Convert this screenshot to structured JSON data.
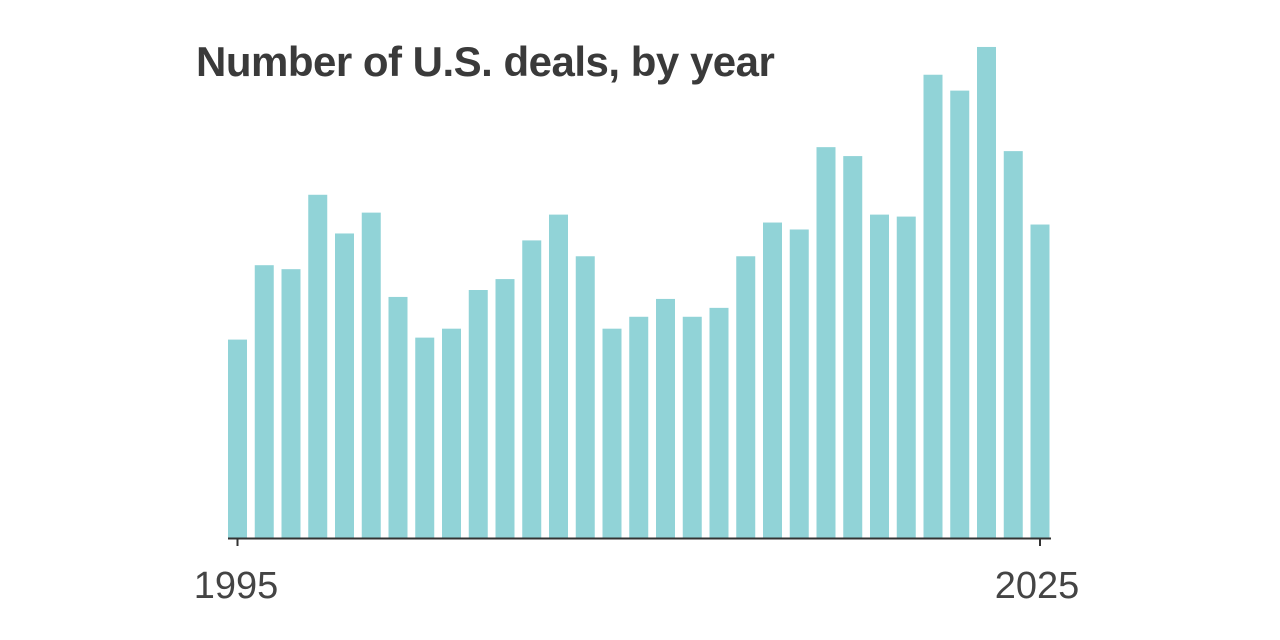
{
  "chart_data": {
    "type": "bar",
    "title": "Number of U.S. deals, by year",
    "xlabel": "",
    "ylabel": "",
    "categories": [
      "1995",
      "1996",
      "1997",
      "1998",
      "1999",
      "2000",
      "2001",
      "2002",
      "2003",
      "2004",
      "2005",
      "2006",
      "2007",
      "2008",
      "2009",
      "2010",
      "2011",
      "2012",
      "2013",
      "2014",
      "2015",
      "2016",
      "2017",
      "2018",
      "2019",
      "2020",
      "2021",
      "2022",
      "2023",
      "2024",
      "2025"
    ],
    "values": [
      200,
      275,
      271,
      346,
      307,
      328,
      243,
      202,
      211,
      250,
      261,
      300,
      326,
      284,
      211,
      223,
      241,
      223,
      232,
      284,
      318,
      311,
      394,
      385,
      326,
      324,
      467,
      451,
      495,
      390,
      316
    ],
    "ylim": [
      0,
      500
    ],
    "x_tick_labels": [
      "1995",
      "2025"
    ],
    "grid": false,
    "legend": "none",
    "colors": {
      "bar": "#91d3d7",
      "axis": "#333333",
      "title": "#3a3a3a",
      "tick_text": "#444444"
    }
  }
}
